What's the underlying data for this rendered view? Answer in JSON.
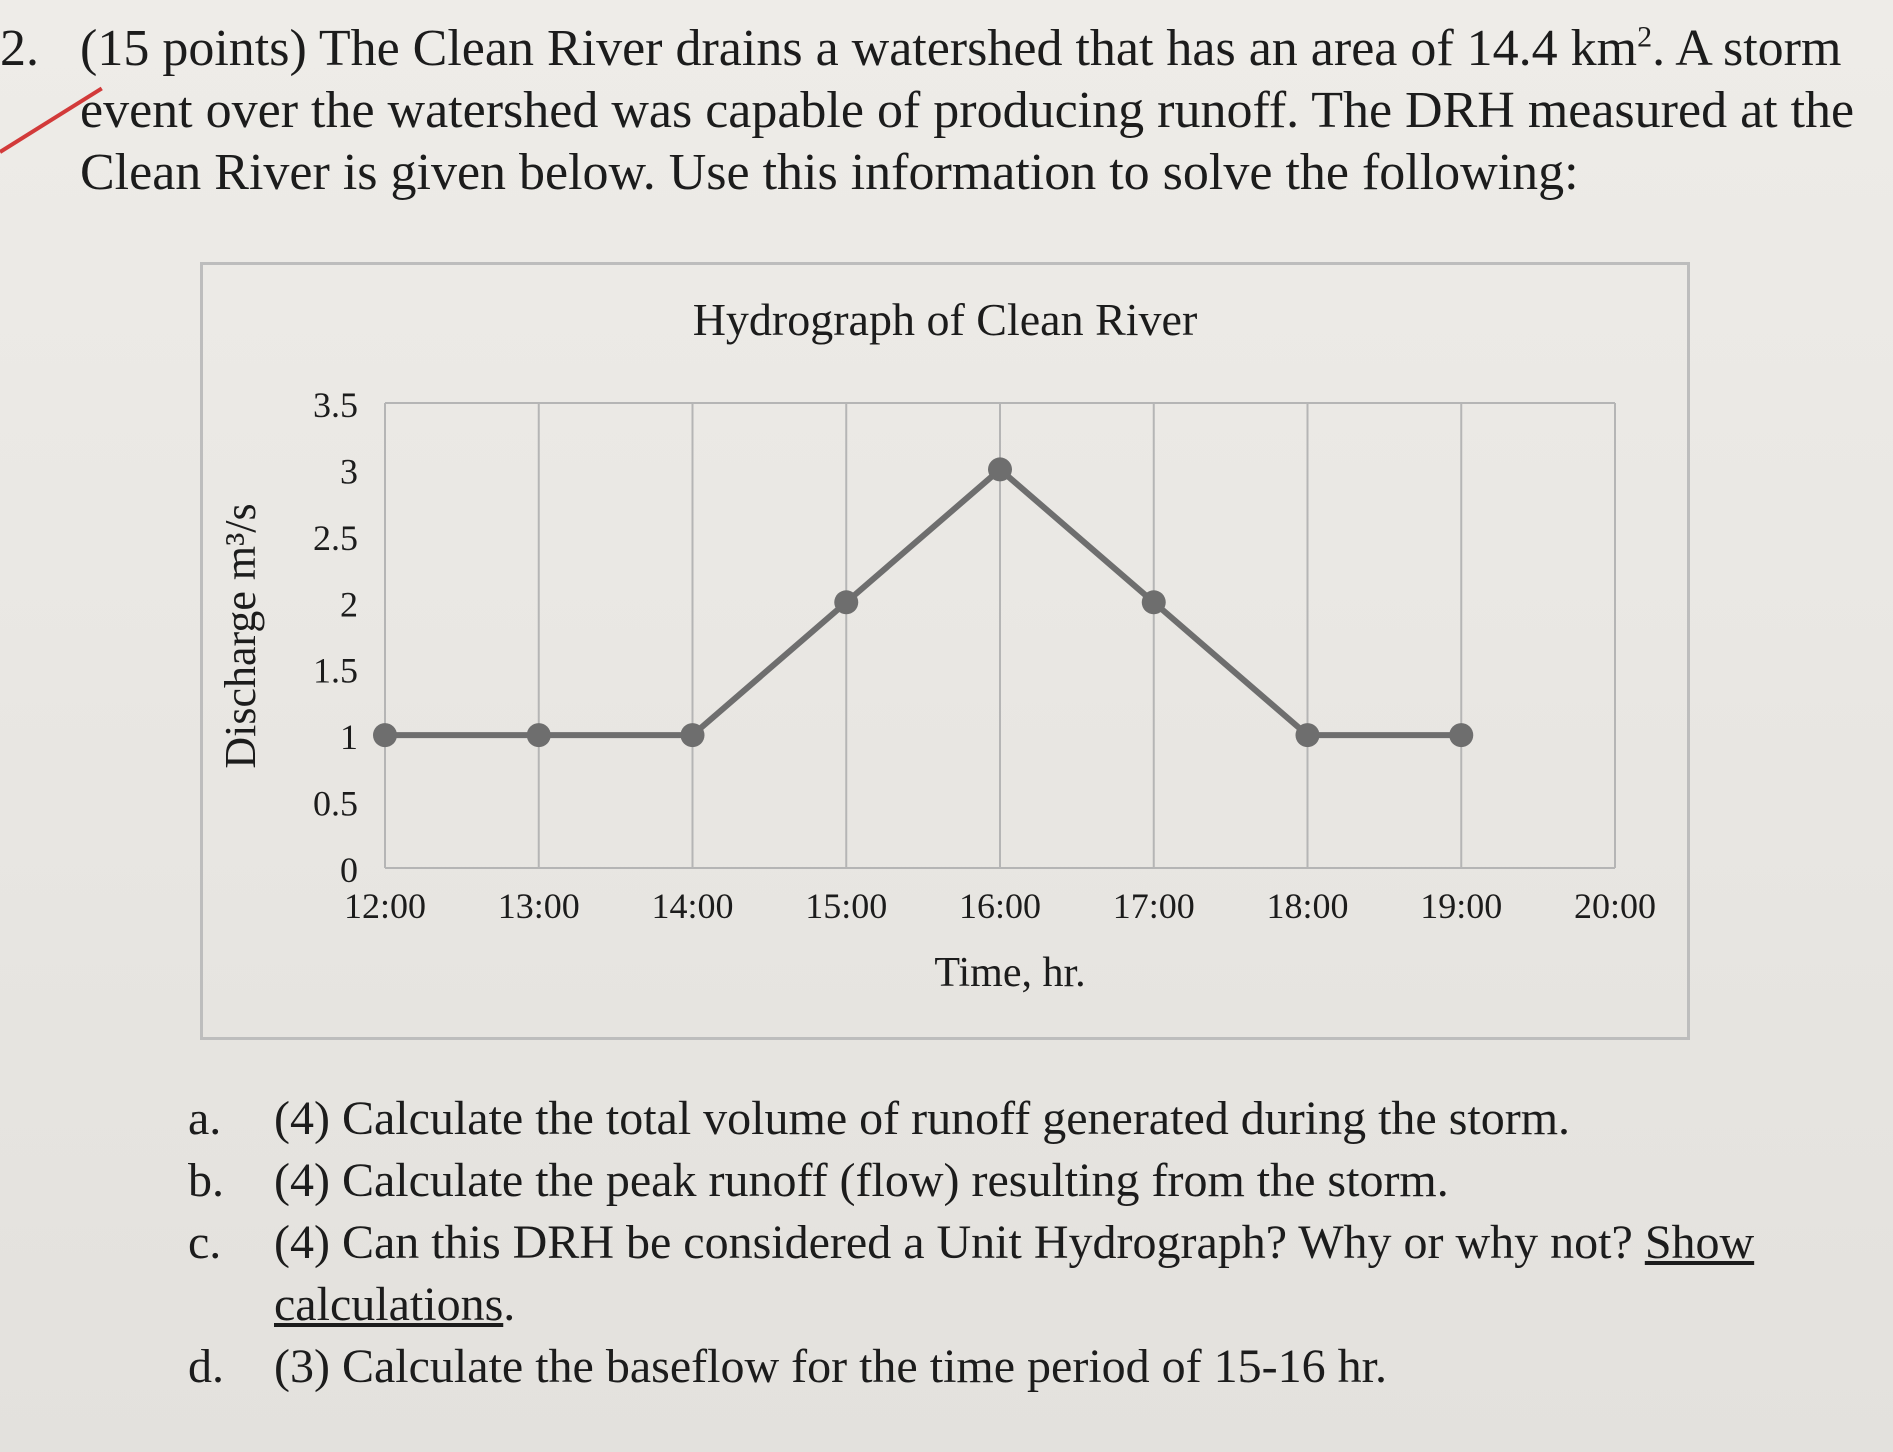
{
  "problem": {
    "number": "2.",
    "line1": "(15 points) The Clean River drains a watershed that has an area of 14.4 km",
    "line1_sup": "2",
    "line1_end": ". A storm",
    "line2": "event over the watershed was capable of producing runoff. The DRH measured at the",
    "line3": "Clean River is given below. Use this information to solve the following:"
  },
  "chart_data": {
    "type": "line",
    "title": "Hydrograph of Clean River",
    "xlabel": "Time, hr.",
    "ylabel": "Discharge m³/s",
    "categories": [
      "12:00",
      "13:00",
      "14:00",
      "15:00",
      "16:00",
      "17:00",
      "18:00",
      "19:00",
      "20:00"
    ],
    "y_ticks": [
      "0",
      "0.5",
      "1",
      "1.5",
      "2",
      "2.5",
      "3",
      "3.5"
    ],
    "ylim": [
      0,
      3.5
    ],
    "series": [
      {
        "x": [
          "12:00",
          "13:00",
          "14:00",
          "15:00",
          "16:00",
          "17:00",
          "18:00",
          "19:00"
        ],
        "values": [
          1,
          1,
          1,
          2,
          3,
          2,
          1,
          1
        ]
      }
    ],
    "grid": true,
    "colors": {
      "line": "#6e6e6e",
      "marker": "#6e6e6e",
      "grid": "#b5b5b5"
    }
  },
  "questions": [
    {
      "letter": "a.",
      "text": "(4) Calculate the total volume of runoff generated during the storm."
    },
    {
      "letter": "b.",
      "text": "(4) Calculate the peak runoff (flow) resulting from the storm."
    },
    {
      "letter": "c.",
      "text": "(4) Can this DRH be considered a Unit Hydrograph? Why or why not?",
      "underlined_1": "Show",
      "underlined_2": "calculations",
      "end": "."
    },
    {
      "letter": "d.",
      "text": "(3) Calculate the baseflow for the time period of 15-16 hr."
    }
  ]
}
